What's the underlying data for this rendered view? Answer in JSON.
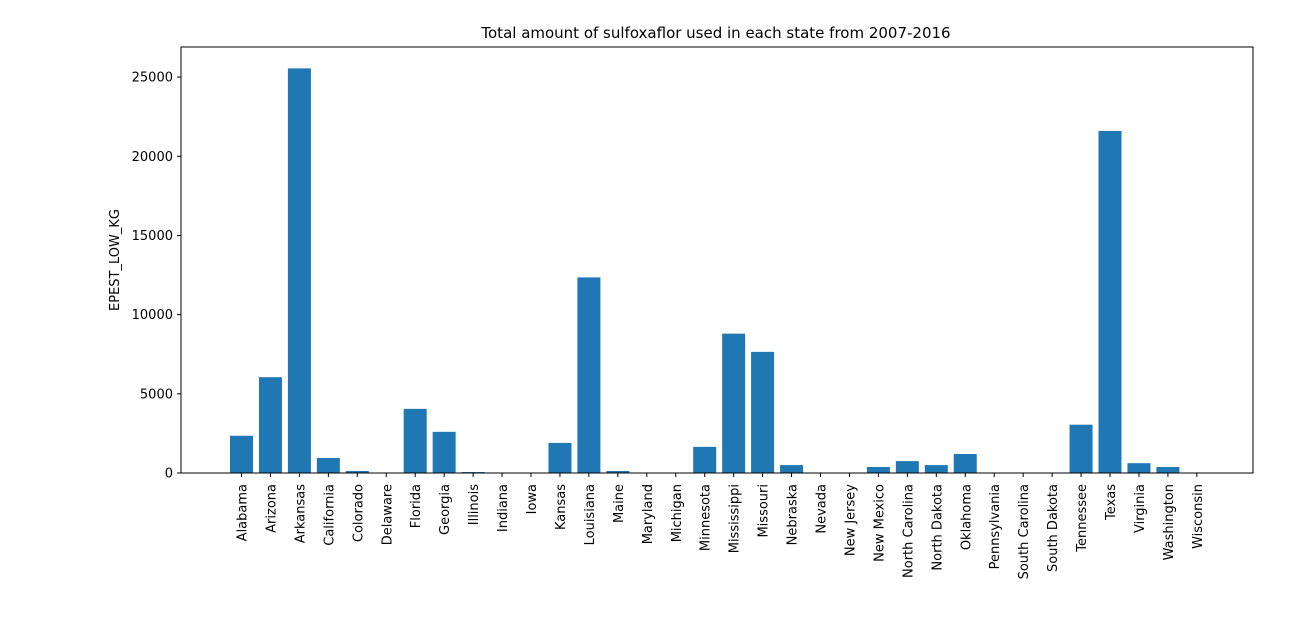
{
  "chart_data": {
    "type": "bar",
    "title": "Total amount of sulfoxaflor used in each state from 2007-2016",
    "xlabel": "",
    "ylabel": "EPEST_LOW_KG",
    "ylim": [
      0,
      26900
    ],
    "yticks": [
      0,
      5000,
      10000,
      15000,
      20000,
      25000
    ],
    "color": "#1f77b4",
    "grid": false,
    "categories": [
      "Alabama",
      "Arizona",
      "Arkansas",
      "California",
      "Colorado",
      "Delaware",
      "Florida",
      "Georgia",
      "Illinois",
      "Indiana",
      "Iowa",
      "Kansas",
      "Louisiana",
      "Maine",
      "Maryland",
      "Michigan",
      "Minnesota",
      "Mississippi",
      "Missouri",
      "Nebraska",
      "Nevada",
      "New Jersey",
      "New Mexico",
      "North Carolina",
      "North Dakota",
      "Oklahoma",
      "Pennsylvania",
      "South Carolina",
      "South Dakota",
      "Tennessee",
      "Texas",
      "Virginia",
      "Washington",
      "Wisconsin"
    ],
    "values": [
      2350,
      6050,
      25550,
      950,
      130,
      10,
      4050,
      2600,
      60,
      10,
      10,
      1900,
      12350,
      130,
      10,
      10,
      1650,
      8800,
      7650,
      500,
      10,
      10,
      380,
      750,
      500,
      1200,
      10,
      10,
      10,
      3050,
      21600,
      620,
      380,
      10
    ]
  }
}
